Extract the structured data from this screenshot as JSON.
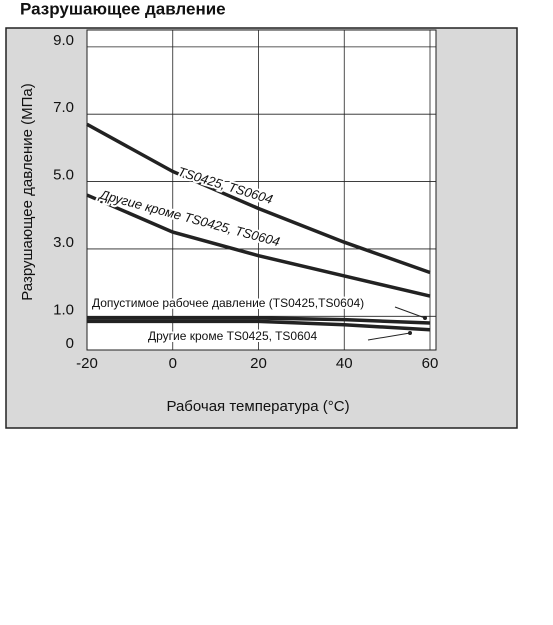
{
  "chart_data": {
    "type": "line",
    "title": "Разрушающее давление",
    "x_label": "Рабочая температура (°C)",
    "y_label": "Разрушающее давление (MПа)",
    "x": [
      -20,
      0,
      20,
      40,
      60
    ],
    "xlim": [
      -20,
      60
    ],
    "xticks": [
      -20,
      0,
      20,
      40,
      60
    ],
    "ylim": [
      0,
      9.5
    ],
    "yticks": [
      0,
      {
        "value": 1,
        "label": "1.0"
      },
      {
        "value": 3,
        "label": "3.0"
      },
      {
        "value": 5,
        "label": "5.0"
      },
      {
        "value": 7,
        "label": "7.0"
      },
      {
        "value": 9,
        "label": "9.0"
      }
    ],
    "grid": true,
    "series": [
      {
        "name": "TS0425, TS0604",
        "color": "#222222",
        "values": [
          6.7,
          5.3,
          4.2,
          3.2,
          2.3
        ]
      },
      {
        "name": "Другие кроме TS0425, TS0604",
        "color": "#222222",
        "values": [
          4.6,
          3.5,
          2.8,
          2.2,
          1.6
        ]
      },
      {
        "name": "Допустимое рабочее давление (TS0425,TS0604)",
        "color": "#222222",
        "values": [
          0.95,
          0.95,
          0.95,
          0.9,
          0.8
        ]
      },
      {
        "name": "Другие кроме TS0425, TS0604",
        "color": "#222222",
        "values": [
          0.85,
          0.85,
          0.85,
          0.75,
          0.6
        ]
      }
    ]
  }
}
